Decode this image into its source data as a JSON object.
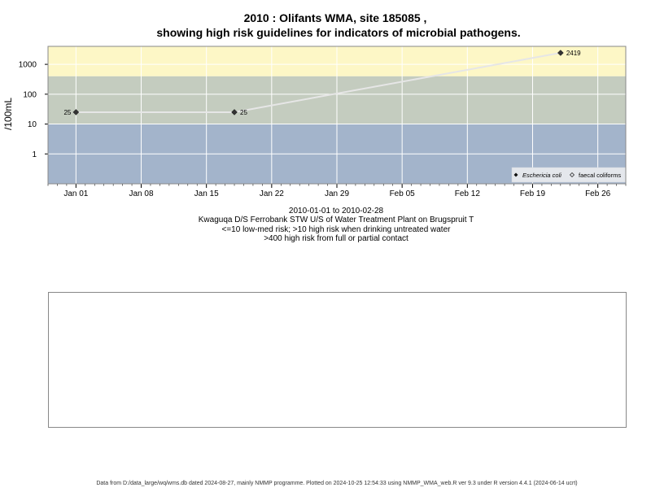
{
  "title_line1": "2010 : Olifants WMA, site 185085 ,",
  "title_line2": "showing high risk guidelines for indicators of microbial pathogens.",
  "ylabel": "/100mL",
  "caption": [
    "2010-01-01 to 2010-02-28",
    "Kwaguqa D/S Ferrobank STW U/S of Water Treatment Plant on Brugspruit T",
    "<=10 low-med risk; >10 high risk when drinking untreated water",
    ">400 high risk from full or partial contact"
  ],
  "footer": "Data from D:/data_large/wq/wms.db dated 2024-08-27, mainly NMMP programme. Plotted on 2024-10-25 12:54:33 using NMMP_WMA_web.R ver 9.3 under R version 4.4.1 (2024-06-14 ucrt)",
  "colors": {
    "band_low": "#a3b4cb",
    "band_mid": "#c4ccbf",
    "band_high": "#fdf7c6",
    "line": "#e6e6e6",
    "point": "#333333",
    "grid": "#ffffff",
    "frame": "#888888"
  },
  "chart_data": {
    "type": "line",
    "y_scale": "log10",
    "ylim": [
      0.1,
      4000
    ],
    "y_ticks": [
      {
        "value": 1,
        "label": "1"
      },
      {
        "value": 10,
        "label": "10"
      },
      {
        "value": 100,
        "label": "100"
      },
      {
        "value": 1000,
        "label": "1000"
      }
    ],
    "xlim": [
      "2009-12-29",
      "2010-03-01"
    ],
    "x_ticks": [
      {
        "date": "2010-01-01",
        "label": "Jan 01"
      },
      {
        "date": "2010-01-08",
        "label": "Jan 08"
      },
      {
        "date": "2010-01-15",
        "label": "Jan 15"
      },
      {
        "date": "2010-01-22",
        "label": "Jan 22"
      },
      {
        "date": "2010-01-29",
        "label": "Jan 29"
      },
      {
        "date": "2010-02-05",
        "label": "Feb 05"
      },
      {
        "date": "2010-02-12",
        "label": "Feb 12"
      },
      {
        "date": "2010-02-19",
        "label": "Feb 19"
      },
      {
        "date": "2010-02-26",
        "label": "Feb 26"
      }
    ],
    "bands": [
      {
        "name": "low-med risk",
        "from": 0.1,
        "to": 10,
        "color": "#a3b4cb"
      },
      {
        "name": "high risk drinking",
        "from": 10,
        "to": 400,
        "color": "#c4ccbf"
      },
      {
        "name": "high risk contact",
        "from": 400,
        "to": 4000,
        "color": "#fdf7c6"
      }
    ],
    "series": [
      {
        "name": "Eschericia coli",
        "marker": "filled-diamond",
        "points": [
          {
            "x": "2010-01-01",
            "y": 25,
            "label": "25"
          },
          {
            "x": "2010-01-18",
            "y": 25,
            "label": "25"
          },
          {
            "x": "2010-02-22",
            "y": 2419,
            "label": "2419"
          }
        ]
      },
      {
        "name": "faecal coliforms",
        "marker": "open-diamond",
        "points": []
      }
    ],
    "legend_position": "bottom-right",
    "grid": true
  }
}
